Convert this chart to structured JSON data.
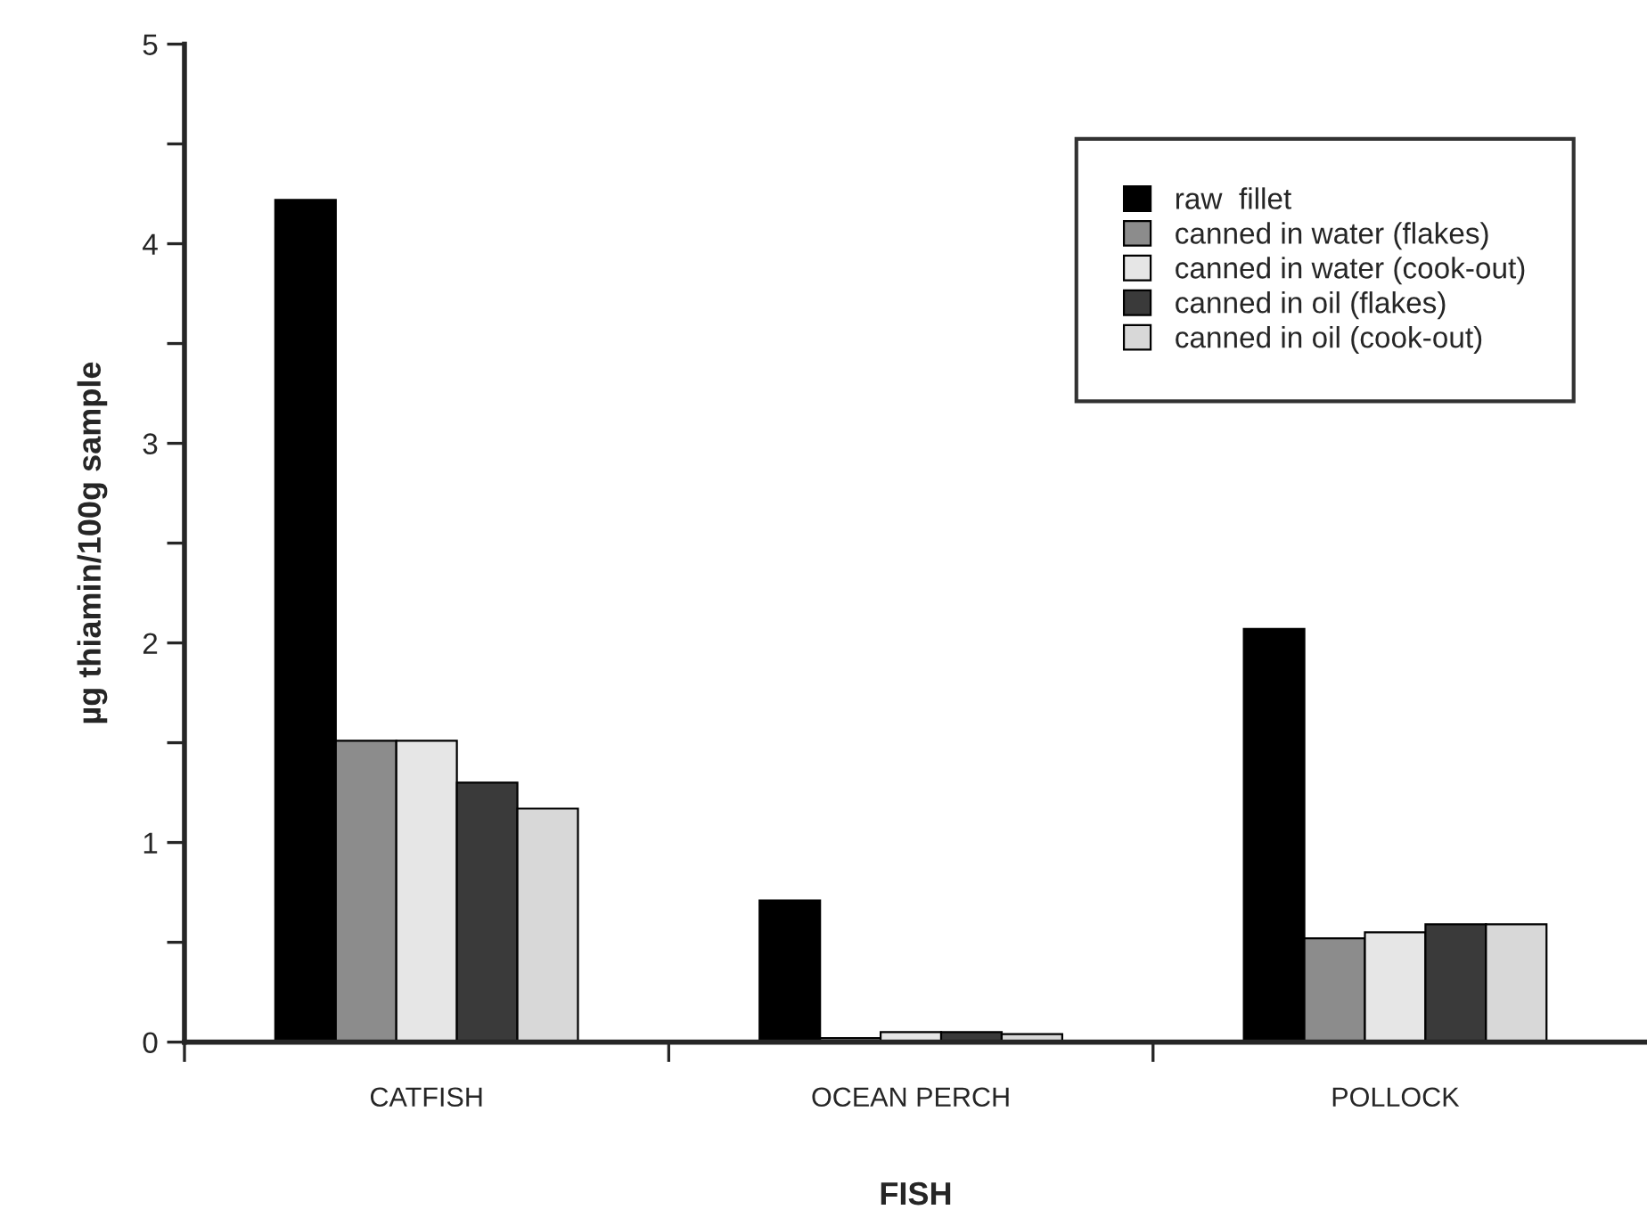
{
  "chart_data": {
    "type": "bar",
    "xlabel": "FISH",
    "ylabel": "µg thiamin/100g sample",
    "categories": [
      "CATFISH",
      "OCEAN PERCH",
      "POLLOCK"
    ],
    "series": [
      {
        "name": "raw  fillet",
        "color": "#000000",
        "values": [
          4.22,
          0.71,
          2.07
        ]
      },
      {
        "name": "canned in water (flakes)",
        "color": "#8c8c8c",
        "values": [
          1.51,
          0.02,
          0.52
        ]
      },
      {
        "name": "canned in water (cook-out)",
        "color": "#e6e6e6",
        "values": [
          1.51,
          0.05,
          0.55
        ]
      },
      {
        "name": "canned in oil (flakes)",
        "color": "#3a3a3a",
        "values": [
          1.3,
          0.05,
          0.59
        ]
      },
      {
        "name": "canned in oil (cook-out)",
        "color": "#d8d8d8",
        "values": [
          1.17,
          0.04,
          0.59
        ]
      }
    ],
    "ylim": [
      0,
      5
    ],
    "yticks": [
      0,
      {
        "value": 0.5,
        "label": null
      },
      1,
      {
        "value": 1.5,
        "label": null
      },
      2,
      {
        "value": 2.5,
        "label": null
      },
      3,
      {
        "value": 3.5,
        "label": null
      },
      4,
      {
        "value": 4.5,
        "label": null
      },
      5
    ],
    "grid": false,
    "legend": "top right"
  }
}
